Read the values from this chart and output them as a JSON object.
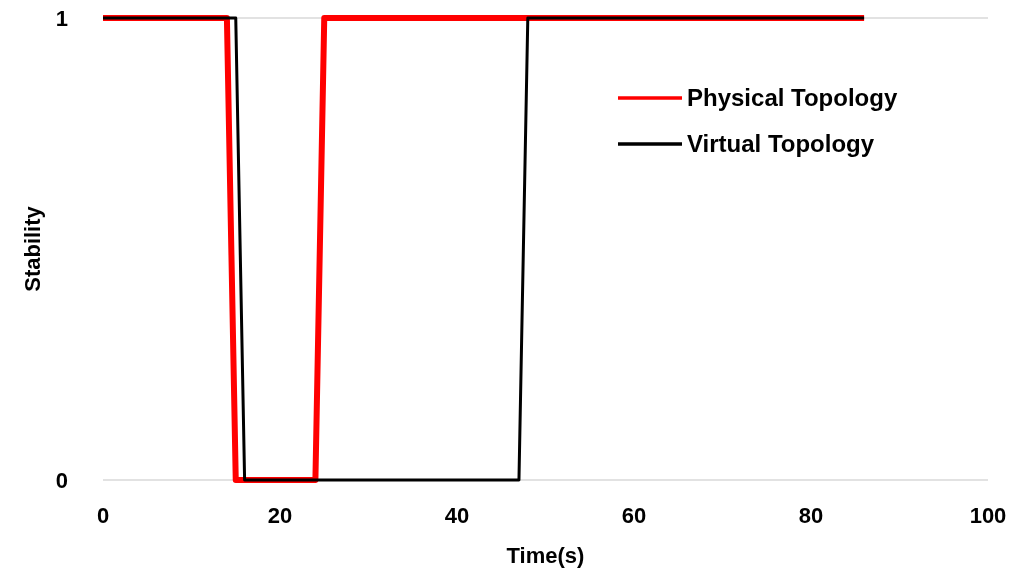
{
  "chart_data": {
    "type": "line",
    "xlabel": "Time(s)",
    "ylabel": "Stability",
    "xlim": [
      0,
      100
    ],
    "xticks": [
      0,
      20,
      40,
      60,
      80,
      100
    ],
    "ylim": [
      0,
      1
    ],
    "yticks": [
      0,
      1
    ],
    "grid": false,
    "legend": "top right",
    "marker": "none",
    "line_style": "solid",
    "series": [
      {
        "name": "Physical Topology",
        "color": "#ff0000",
        "x": [
          0,
          14,
          15,
          24,
          25,
          86
        ],
        "values": [
          1,
          1,
          0,
          0,
          1,
          1
        ]
      },
      {
        "name": "Virtual Topology",
        "color": "#000000",
        "x": [
          0,
          15,
          16,
          47,
          48,
          86
        ],
        "values": [
          1,
          1,
          0,
          0,
          1,
          1
        ]
      }
    ]
  }
}
